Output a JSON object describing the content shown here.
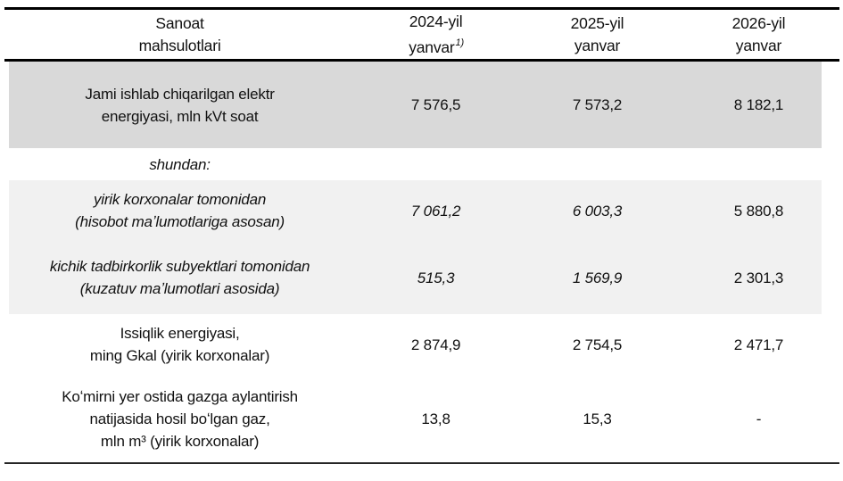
{
  "table": {
    "title_note": "Statistical table of industrial products (electric and heat energy output)",
    "header": {
      "product": {
        "line1": "Sanoat",
        "line2": "mahsulotlari"
      },
      "y2024": {
        "line1": "2024-yil",
        "line2": "yanvar",
        "footnote": "1)"
      },
      "y2025": {
        "line1": "2025-yil",
        "line2": "yanvar"
      },
      "y2026": {
        "line1": "2026-yil",
        "line2": "yanvar"
      }
    },
    "rows": [
      {
        "lines": [
          "Jami ishlab chiqarilgan elektr",
          "energiyasi, mln kVt soat"
        ],
        "v2024": "7 576,5",
        "v2025": "7 573,2",
        "v2026": "8 182,1"
      },
      {
        "group_label": "shundan:"
      },
      {
        "lines": [
          "yirik korxonalar tomonidan",
          "(hisobot maʼlumotlariga asosan)"
        ],
        "v2024": "7 061,2",
        "v2025": "6 003,3",
        "v2026": "5 880,8"
      },
      {
        "lines": [
          "kichik tadbirkorlik subyektlari tomonidan",
          "(kuzatuv maʼlumotlari asosida)"
        ],
        "v2024": "515,3",
        "v2025": "1 569,9",
        "v2026": "2 301,3"
      },
      {
        "lines": [
          "Issiqlik energiyasi,",
          "ming Gkal (yirik korxonalar)"
        ],
        "v2024": "2 874,9",
        "v2025": "2 754,5",
        "v2026": "2 471,7"
      },
      {
        "lines": [
          "Koʻmirni yer ostida gazga aylantirish",
          "natijasida hosil boʻlgan gaz,",
          "mln m³ (yirik korxonalar)"
        ],
        "v2024": "13,8",
        "v2025": "15,3",
        "v2026": "-"
      }
    ],
    "colors": {
      "shade_dark": "#d9d9d9",
      "shade_light": "#f1f1f1",
      "rule": "#000000",
      "text": "#111111"
    }
  },
  "chart_data": {
    "type": "table",
    "columns": [
      "Sanoat mahsulotlari",
      "2024-yil yanvar1)",
      "2025-yil yanvar",
      "2026-yil yanvar"
    ],
    "rows": [
      [
        "Jami ishlab chiqarilgan elektr energiyasi, mln kVt soat",
        "7 576,5",
        "7 573,2",
        "8 182,1"
      ],
      [
        "shundan:",
        "",
        "",
        ""
      ],
      [
        "yirik korxonalar tomonidan (hisobot maʼlumotlariga asosan)",
        "7 061,2",
        "6 003,3",
        "5 880,8"
      ],
      [
        "kichik tadbirkorlik subyektlari tomonidan (kuzatuv maʼlumotlari asosida)",
        "515,3",
        "1 569,9",
        "2 301,3"
      ],
      [
        "Issiqlik energiyasi, ming Gkal (yirik korxonalar)",
        "2 874,9",
        "2 754,5",
        "2 471,7"
      ],
      [
        "Koʻmirni yer ostida gazga aylantirish natijasida hosil boʻlgan gaz, mln m³ (yirik korxonalar)",
        "13,8",
        "15,3",
        "-"
      ]
    ]
  }
}
